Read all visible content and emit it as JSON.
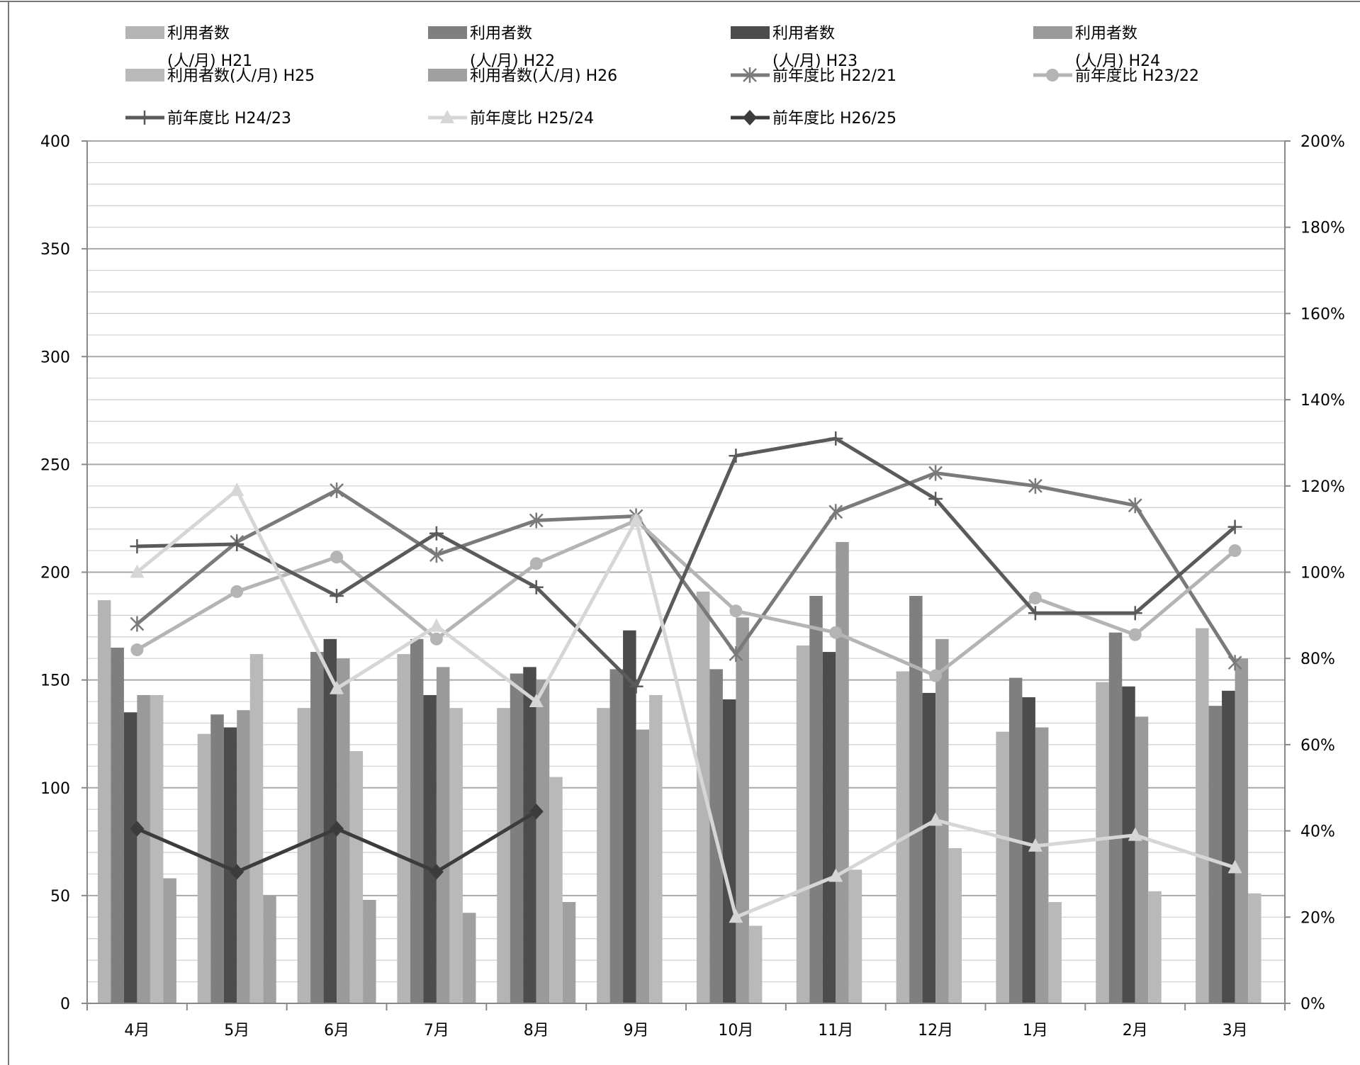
{
  "chart_data": {
    "type": "bar",
    "categories": [
      "4月",
      "5月",
      "6月",
      "7月",
      "8月",
      "9月",
      "10月",
      "11月",
      "12月",
      "1月",
      "2月",
      "3月"
    ],
    "y_left": {
      "min": 0,
      "max": 400,
      "major": 50,
      "ticks": [
        "0",
        "50",
        "100",
        "150",
        "200",
        "250",
        "300",
        "350",
        "400"
      ]
    },
    "y_right": {
      "min": 0,
      "max": 2.0,
      "ticks": [
        "0%",
        "20%",
        "40%",
        "60%",
        "80%",
        "100%",
        "120%",
        "140%",
        "160%",
        "180%",
        "200%"
      ]
    },
    "grid": true,
    "legend_position": "top",
    "bar_series": [
      {
        "name": "利用者数 (人/月) H21",
        "name_lines": [
          "利用者数",
          "(人/月) H21"
        ],
        "color": "#b4b4b4",
        "values": [
          187,
          125,
          137,
          162,
          137,
          137,
          191,
          166,
          154,
          126,
          149,
          174
        ]
      },
      {
        "name": "利用者数 (人/月) H22",
        "name_lines": [
          "利用者数",
          "(人/月) H22"
        ],
        "color": "#7f7f7f",
        "values": [
          165,
          134,
          163,
          169,
          153,
          155,
          155,
          189,
          189,
          151,
          172,
          138
        ]
      },
      {
        "name": "利用者数 (人/月) H23",
        "name_lines": [
          "利用者数",
          "(人/月) H23"
        ],
        "color": "#4c4c4c",
        "values": [
          135,
          128,
          169,
          143,
          156,
          173,
          141,
          163,
          144,
          142,
          147,
          145
        ]
      },
      {
        "name": "利用者数 (人/月) H24",
        "name_lines": [
          "利用者数",
          "(人/月) H24"
        ],
        "color": "#9a9a9a",
        "values": [
          143,
          136,
          160,
          156,
          150,
          127,
          179,
          214,
          169,
          128,
          133,
          160
        ]
      },
      {
        "name": "利用者数(人/月) H25",
        "name_lines": [
          "利用者数(人/月) H25"
        ],
        "color": "#b9b9b9",
        "values": [
          143,
          162,
          117,
          137,
          105,
          143,
          36,
          62,
          72,
          47,
          52,
          51
        ]
      },
      {
        "name": "利用者数(人/月) H26",
        "name_lines": [
          "利用者数(人/月) H26"
        ],
        "color": "#a0a0a0",
        "values": [
          58,
          50,
          48,
          42,
          47,
          null,
          null,
          null,
          null,
          null,
          null,
          null
        ]
      }
    ],
    "line_series": [
      {
        "name": "前年度比 H22/21",
        "color": "#7a7a7a",
        "marker": "star",
        "values": [
          0.88,
          1.07,
          1.19,
          1.04,
          1.12,
          1.13,
          0.81,
          1.14,
          1.23,
          1.2,
          1.155,
          0.79
        ]
      },
      {
        "name": "前年度比 H23/22",
        "color": "#b4b4b4",
        "marker": "circle",
        "values": [
          0.82,
          0.955,
          1.035,
          0.845,
          1.02,
          1.12,
          0.91,
          0.86,
          0.76,
          0.94,
          0.855,
          1.05
        ]
      },
      {
        "name": "前年度比 H24/23",
        "color": "#5a5a5a",
        "marker": "plus",
        "values": [
          1.06,
          1.065,
          0.945,
          1.09,
          0.965,
          0.735,
          1.27,
          1.31,
          1.17,
          0.905,
          0.905,
          1.105
        ]
      },
      {
        "name": "前年度比 H25/24",
        "color": "#d6d6d6",
        "marker": "triangle",
        "values": [
          1.0,
          1.19,
          0.73,
          0.875,
          0.7,
          1.12,
          0.2,
          0.295,
          0.425,
          0.365,
          0.39,
          0.315
        ]
      },
      {
        "name": "前年度比 H26/25",
        "color": "#3c3c3c",
        "marker": "diamond",
        "values": [
          0.405,
          0.305,
          0.405,
          0.305,
          0.445,
          null,
          null,
          null,
          null,
          null,
          null,
          null
        ]
      }
    ]
  }
}
